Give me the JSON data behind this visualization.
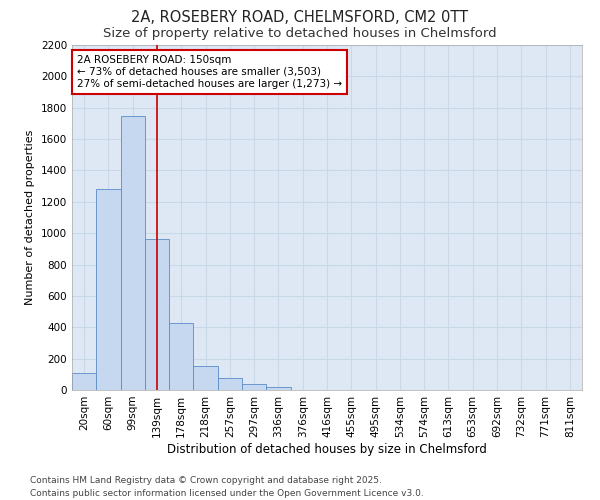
{
  "title1": "2A, ROSEBERY ROAD, CHELMSFORD, CM2 0TT",
  "title2": "Size of property relative to detached houses in Chelmsford",
  "xlabel": "Distribution of detached houses by size in Chelmsford",
  "ylabel": "Number of detached properties",
  "categories": [
    "20sqm",
    "60sqm",
    "99sqm",
    "139sqm",
    "178sqm",
    "218sqm",
    "257sqm",
    "297sqm",
    "336sqm",
    "376sqm",
    "416sqm",
    "455sqm",
    "495sqm",
    "534sqm",
    "574sqm",
    "613sqm",
    "653sqm",
    "692sqm",
    "732sqm",
    "771sqm",
    "811sqm"
  ],
  "values": [
    110,
    1280,
    1750,
    960,
    430,
    150,
    75,
    40,
    20,
    0,
    0,
    0,
    0,
    0,
    0,
    0,
    0,
    0,
    0,
    0,
    0
  ],
  "bar_color": "#c5d8ef",
  "bar_edge_color": "#5b8cc8",
  "red_line_x": 3.0,
  "annotation_text": "2A ROSEBERY ROAD: 150sqm\n← 73% of detached houses are smaller (3,503)\n27% of semi-detached houses are larger (1,273) →",
  "annotation_box_facecolor": "#ffffff",
  "annotation_box_edgecolor": "#cc0000",
  "grid_color": "#c8d8e8",
  "ax_facecolor": "#dde8f4",
  "fig_facecolor": "#ffffff",
  "ylim": [
    0,
    2200
  ],
  "yticks": [
    0,
    200,
    400,
    600,
    800,
    1000,
    1200,
    1400,
    1600,
    1800,
    2000,
    2200
  ],
  "footnote": "Contains HM Land Registry data © Crown copyright and database right 2025.\nContains public sector information licensed under the Open Government Licence v3.0.",
  "title1_fontsize": 10.5,
  "title2_fontsize": 9.5,
  "xlabel_fontsize": 8.5,
  "ylabel_fontsize": 8,
  "tick_fontsize": 7.5,
  "annotation_fontsize": 7.5,
  "footnote_fontsize": 6.5
}
